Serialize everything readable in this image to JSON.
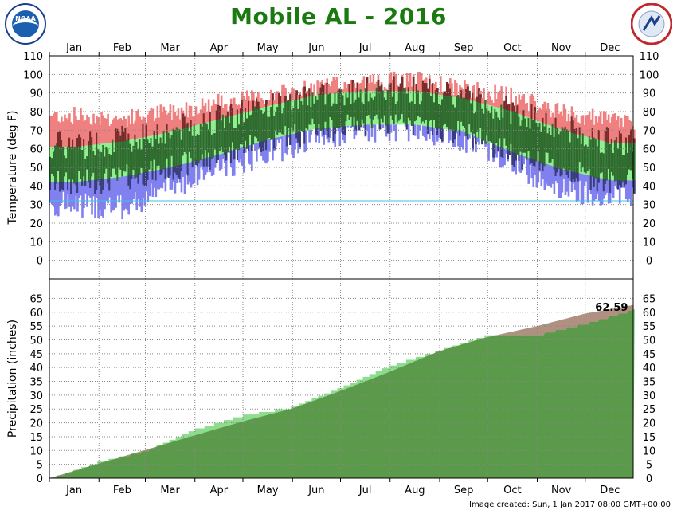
{
  "page": {
    "title": "Mobile AL - 2016",
    "image_created": "Image created: Sun, 1 Jan 2017 08:00 GMT+00:00",
    "logos": {
      "left": "NOAA",
      "right": "NATIONAL WEATHER SERVICE"
    }
  },
  "colors": {
    "above_normal_high": "#f08080",
    "normal_range": "#8ef08e",
    "below_normal_low": "#8080f0",
    "actual_range_dark": "#2f6b2f",
    "record_high_dark": "#7a2a2a",
    "record_low_dark": "#3a3a80",
    "freezing_line": "#40c0e0",
    "precip_observed": "#5a9a4a",
    "precip_normal": "#b09080",
    "precip_light": "#8edc8e"
  },
  "chart_data": [
    {
      "type": "area",
      "title": "Mobile AL - 2016",
      "ylabel": "Temperature (deg F)",
      "xlabel": "",
      "categories": [
        "Jan",
        "Feb",
        "Mar",
        "Apr",
        "May",
        "Jun",
        "Jul",
        "Aug",
        "Sep",
        "Oct",
        "Nov",
        "Dec"
      ],
      "ylim": [
        -10,
        110
      ],
      "yticks": [
        0,
        10,
        20,
        30,
        40,
        50,
        60,
        70,
        80,
        90,
        100,
        110
      ],
      "grid": true,
      "freezing_line": 32,
      "series": [
        {
          "values": [
            78,
            76,
            80,
            85,
            88,
            93,
            96,
            97,
            92,
            88,
            79,
            75
          ]
        },
        {
          "values": [
            61,
            64,
            69,
            76,
            83,
            89,
            91,
            91,
            87,
            80,
            70,
            63
          ]
        },
        {
          "values": [
            42,
            45,
            50,
            57,
            65,
            71,
            73,
            73,
            69,
            58,
            49,
            43
          ]
        },
        {
          "values": [
            30,
            28,
            40,
            50,
            58,
            66,
            70,
            71,
            65,
            52,
            38,
            35
          ]
        }
      ]
    },
    {
      "type": "area",
      "ylabel": "Precipitation (inches)",
      "xlabel": "",
      "categories": [
        "Jan",
        "Feb",
        "Mar",
        "Apr",
        "May",
        "Jun",
        "Jul",
        "Aug",
        "Sep",
        "Oct",
        "Nov",
        "Dec"
      ],
      "x": [
        "Jan 1",
        "Feb 1",
        "Mar 1",
        "Apr 1",
        "May 1",
        "Jun 1",
        "Jul 1",
        "Aug 1",
        "Sep 1",
        "Oct 1",
        "Nov 1",
        "Dec 1",
        "Dec 31"
      ],
      "ylim": [
        0,
        68
      ],
      "yticks": [
        0,
        5,
        10,
        15,
        20,
        25,
        30,
        35,
        40,
        45,
        50,
        55,
        60,
        65
      ],
      "grid": true,
      "series": [
        {
          "values": [
            0,
            5.3,
            10.2,
            15.5,
            20.5,
            25.2,
            31.5,
            38.5,
            46,
            51,
            55,
            59.5,
            62.59
          ]
        },
        {
          "values": [
            0,
            6.2,
            10,
            18,
            23,
            26,
            33,
            41,
            46.5,
            52,
            52,
            56,
            61
          ]
        }
      ],
      "annotations": [
        {
          "text": "62.59",
          "x": "Dec 15",
          "y": 62.59
        }
      ]
    }
  ]
}
